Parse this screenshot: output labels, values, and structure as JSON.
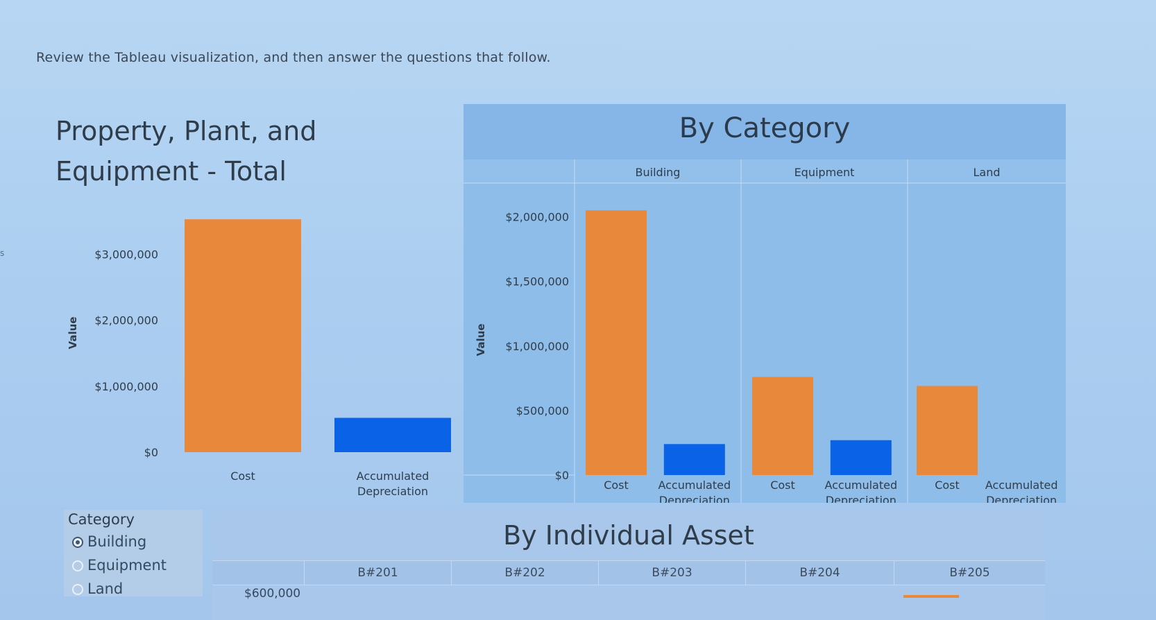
{
  "instruction": "Review the Tableau visualization, and then answer the questions that follow.",
  "edge_glyph": "s",
  "colors": {
    "cost": "#e8883a",
    "depreciation": "#0a63e6"
  },
  "left_chart": {
    "title_line1": "Property, Plant, and",
    "title_line2": "Equipment - Total",
    "ylabel": "Value"
  },
  "by_category": {
    "title": "By Category",
    "ylabel": "Value"
  },
  "filter": {
    "title": "Category",
    "options": [
      {
        "label": "Building",
        "selected": true
      },
      {
        "label": "Equipment",
        "selected": false
      },
      {
        "label": "Land",
        "selected": false
      }
    ]
  },
  "by_asset": {
    "title": "By Individual Asset",
    "columns": [
      "B#201",
      "B#202",
      "B#203",
      "B#204",
      "B#205"
    ],
    "axis_label": "$600,000"
  },
  "chart_data": [
    {
      "type": "bar",
      "title": "Property, Plant, and Equipment - Total",
      "ylabel": "Value",
      "categories": [
        "Cost",
        "Accumulated Depreciation"
      ],
      "values": [
        3530000,
        520000
      ],
      "yticks": [
        "$0",
        "$1,000,000",
        "$2,000,000",
        "$3,000,000"
      ],
      "ytick_values": [
        0,
        1000000,
        2000000,
        3000000
      ],
      "ylim": [
        0,
        3700000
      ]
    },
    {
      "type": "bar",
      "title": "By Category",
      "ylabel": "Value",
      "panels": [
        "Building",
        "Equipment",
        "Land"
      ],
      "categories": [
        "Cost",
        "Accumulated Depreciation"
      ],
      "series": [
        {
          "panel": "Building",
          "values": [
            2050000,
            240000
          ]
        },
        {
          "panel": "Equipment",
          "values": [
            760000,
            270000
          ]
        },
        {
          "panel": "Land",
          "values": [
            690000,
            0
          ]
        }
      ],
      "yticks": [
        "$0",
        "$500,000",
        "$1,000,000",
        "$1,500,000",
        "$2,000,000"
      ],
      "ytick_values": [
        0,
        500000,
        1000000,
        1500000,
        2000000
      ],
      "ylim": [
        0,
        2100000
      ]
    }
  ]
}
